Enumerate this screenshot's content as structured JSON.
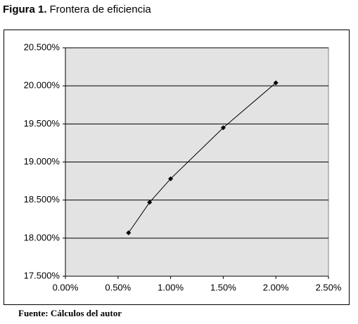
{
  "chart_data": {
    "type": "scatter-line",
    "figure_label": "Figura 1.",
    "title": "Frontera de eficiencia",
    "source": "Fuente: Cálculos del autor",
    "x": [
      0.6,
      0.8,
      1.0,
      1.5,
      2.0
    ],
    "values": [
      18.07,
      18.47,
      18.78,
      19.45,
      20.04
    ],
    "color": "#000000",
    "plot_background": "#e3e3e3",
    "xlim": [
      0,
      2.5
    ],
    "xticks": [
      {
        "value": 0,
        "label": "0.00%"
      },
      {
        "value": 0.5,
        "label": "0.50%"
      },
      {
        "value": 1.0,
        "label": "1.00%"
      },
      {
        "value": 1.5,
        "label": "1.50%"
      },
      {
        "value": 2.0,
        "label": "2.00%"
      },
      {
        "value": 2.5,
        "label": "2.50%"
      }
    ],
    "ylim": [
      17.5,
      20.5
    ],
    "yticks": [
      {
        "value": 17.5,
        "label": "17.500%"
      },
      {
        "value": 18.0,
        "label": "18.000%"
      },
      {
        "value": 18.5,
        "label": "18.500%"
      },
      {
        "value": 19.0,
        "label": "19.000%"
      },
      {
        "value": 19.5,
        "label": "19.500%"
      },
      {
        "value": 20.0,
        "label": "20.000%"
      },
      {
        "value": 20.5,
        "label": "20.500%"
      }
    ],
    "grid": true
  }
}
